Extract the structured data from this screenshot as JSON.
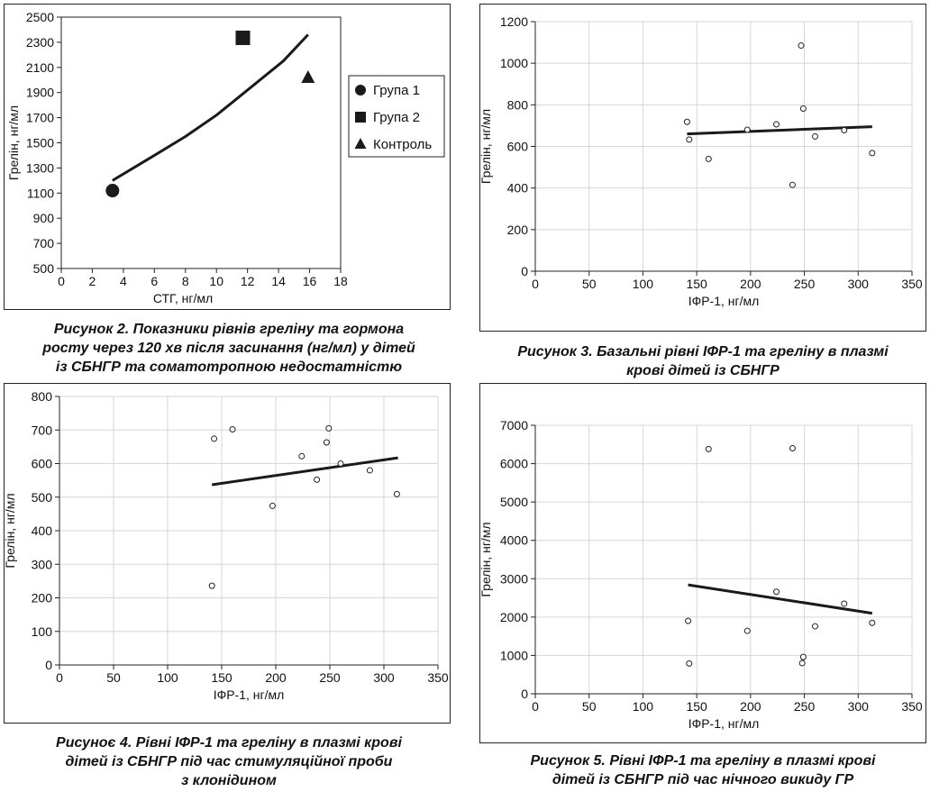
{
  "charts": [
    {
      "caption": "Рисунок 2.  Показники рівнів греліну та гормона росту через 120 хв після засинання (нг/мл) у дітей із СБНГР та соматотропною недостатністю",
      "caption_lines": [
        "Рисунок 2.  Показники рівнів греліну та гормона",
        "росту через 120 хв після засинання (нг/мл) у дітей",
        "із СБНГР та соматотропною недостатністю"
      ]
    },
    {
      "caption": "Рисунок 3.  Базальні рівні ІФР-1 та греліну в плазмі крові дітей із СБНГР",
      "caption_lines": [
        "Рисунок 3.  Базальні рівні ІФР-1 та греліну в плазмі",
        "крові дітей із СБНГР"
      ]
    },
    {
      "caption": "Рисуноє 4.  Рівні ІФР-1 та греліну в плазмі крові дітей із СБНГР під час стимуляційної проби з клонідином",
      "caption_lines": [
        "Рисуноє 4.  Рівні ІФР-1 та греліну в плазмі крові",
        "дітей із СБНГР під час стимуляційної проби",
        "з клонідином"
      ]
    },
    {
      "caption": "Рисунок 5.  Рівні ІФР-1 та греліну в плазмі крові дітей із СБНГР під час нічного викиду ГР",
      "caption_lines": [
        "Рисунок 5.  Рівні ІФР-1 та греліну в плазмі крові",
        "дітей із СБНГР під час нічного викиду ГР"
      ]
    }
  ],
  "chart_data": [
    {
      "type": "scatter",
      "title": "",
      "xlabel": "СТГ, нг/мл",
      "ylabel": "Грелін, нг/мл",
      "xlim": [
        0,
        18
      ],
      "ylim": [
        500,
        2500
      ],
      "xticks": [
        0,
        2,
        4,
        6,
        8,
        10,
        12,
        14,
        16,
        18
      ],
      "yticks": [
        500,
        700,
        900,
        1100,
        1300,
        1500,
        1700,
        1900,
        2100,
        2300,
        2500
      ],
      "grid": false,
      "legend_position": "right",
      "series": [
        {
          "name": "Група 1",
          "marker": "circle",
          "x": [
            3.3
          ],
          "y": [
            1120
          ]
        },
        {
          "name": "Група 2",
          "marker": "square",
          "x": [
            11.7
          ],
          "y": [
            2335
          ]
        },
        {
          "name": "Контроль",
          "marker": "triangle",
          "x": [
            15.9
          ],
          "y": [
            2020
          ]
        }
      ],
      "trend": {
        "x": [
          3.3,
          6,
          8,
          10,
          12,
          14.3,
          15.9
        ],
        "y": [
          1200,
          1400,
          1550,
          1720,
          1920,
          2150,
          2360
        ]
      }
    },
    {
      "type": "scatter",
      "title": "",
      "xlabel": "ІФР-1, нг/мл",
      "ylabel": "Грелін, нг/мл",
      "xlim": [
        0,
        350
      ],
      "ylim": [
        0,
        1200
      ],
      "xticks": [
        0,
        50,
        100,
        150,
        200,
        250,
        300,
        350
      ],
      "yticks": [
        0,
        200,
        400,
        600,
        800,
        1000,
        1200
      ],
      "grid": true,
      "x": [
        141,
        143,
        161,
        197,
        224,
        239,
        247,
        249,
        260,
        287,
        313
      ],
      "y": [
        718,
        633,
        540,
        680,
        706,
        415,
        1085,
        782,
        648,
        678,
        568
      ],
      "trend": {
        "x": [
          141,
          313
        ],
        "y": [
          660,
          695
        ]
      }
    },
    {
      "type": "scatter",
      "title": "",
      "xlabel": "ІФР-1, нг/мл",
      "ylabel": "Грелін, нг/мл",
      "xlim": [
        0,
        350
      ],
      "ylim": [
        0,
        800
      ],
      "xticks": [
        0,
        50,
        100,
        150,
        200,
        250,
        300,
        350
      ],
      "yticks": [
        0,
        100,
        200,
        300,
        400,
        500,
        600,
        700,
        800
      ],
      "grid": true,
      "x": [
        141,
        143,
        160,
        197,
        224,
        238,
        247,
        249,
        260,
        287,
        312
      ],
      "y": [
        236,
        674,
        702,
        474,
        622,
        552,
        663,
        705,
        600,
        580,
        509
      ],
      "trend": {
        "x": [
          141,
          313
        ],
        "y": [
          537,
          617
        ]
      }
    },
    {
      "type": "scatter",
      "title": "",
      "xlabel": "ІФР-1, нг/мл",
      "ylabel": "Грелін, нг/мл",
      "xlim": [
        0,
        350
      ],
      "ylim": [
        0,
        7000
      ],
      "xticks": [
        0,
        50,
        100,
        150,
        200,
        250,
        300,
        350
      ],
      "yticks": [
        0,
        1000,
        2000,
        3000,
        4000,
        5000,
        6000,
        7000
      ],
      "grid": true,
      "x": [
        142,
        143,
        161,
        197,
        224,
        239,
        248,
        249,
        260,
        287,
        313
      ],
      "y": [
        1900,
        790,
        6380,
        1640,
        2660,
        6400,
        800,
        960,
        1760,
        2350,
        1850
      ],
      "trend": {
        "x": [
          142,
          313
        ],
        "y": [
          2840,
          2100
        ]
      }
    }
  ]
}
